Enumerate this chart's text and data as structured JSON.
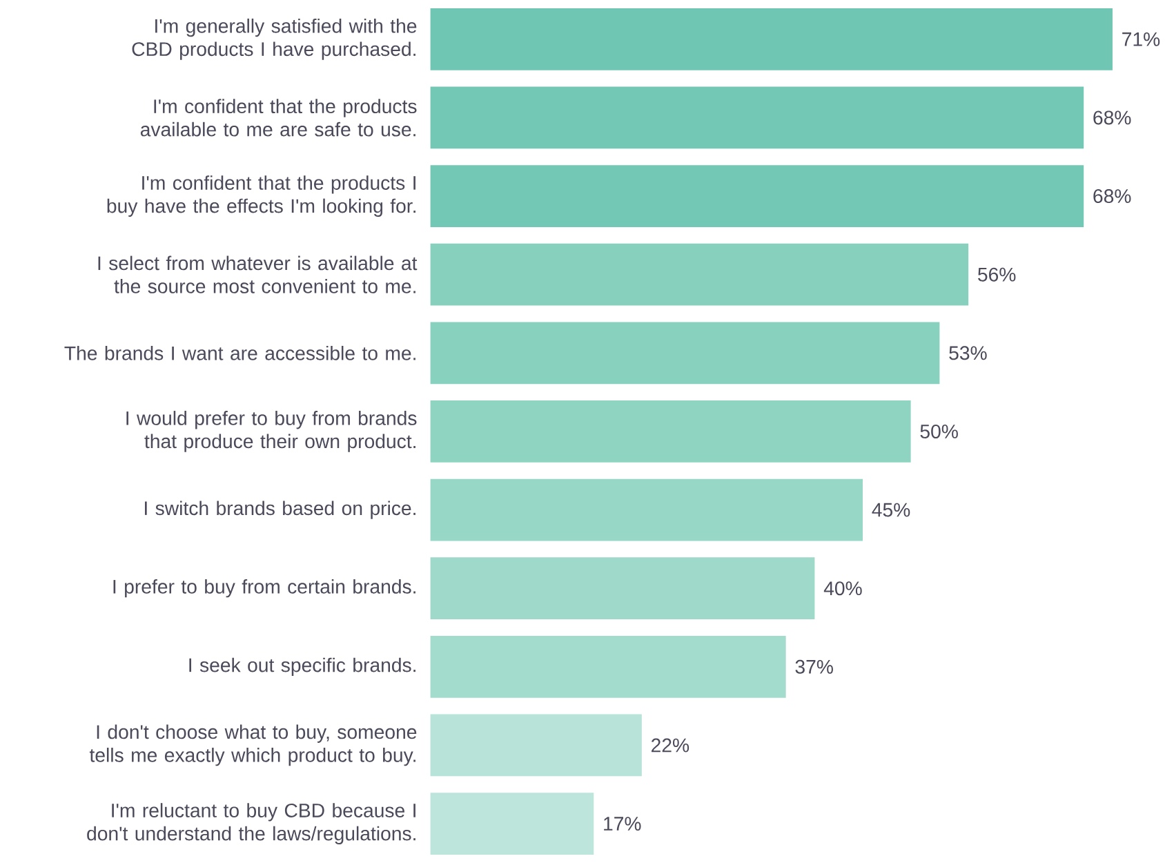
{
  "chart_data": {
    "type": "bar",
    "orientation": "horizontal",
    "categories": [
      "I'm generally satisfied with the CBD products I have purchased.",
      "I'm confident that the products available to me are safe to use.",
      "I'm confident that the products I buy have the effects I'm looking for.",
      "I select from whatever is available at the source most convenient to me.",
      "The brands I want are accessible to me.",
      "I would prefer to buy from brands that produce their own product.",
      "I switch brands based on price.",
      "I prefer to buy from certain brands.",
      "I seek out specific brands.",
      "I don't choose what to buy, someone tells me exactly which product to buy.",
      "I'm reluctant to buy CBD because I don't understand the laws/regulations."
    ],
    "values": [
      71,
      68,
      68,
      56,
      53,
      50,
      45,
      40,
      37,
      22,
      17
    ],
    "value_labels": [
      "71%",
      "68%",
      "68%",
      "56%",
      "53%",
      "50%",
      "45%",
      "40%",
      "37%",
      "22%",
      "17%"
    ],
    "colors": [
      "#6fc7b3",
      "#72c8b5",
      "#72c8b5",
      "#86d0bd",
      "#88d1be",
      "#8fd4c1",
      "#97d7c6",
      "#9ed9c9",
      "#a3dbcc",
      "#b8e3d8",
      "#bde5db"
    ]
  }
}
